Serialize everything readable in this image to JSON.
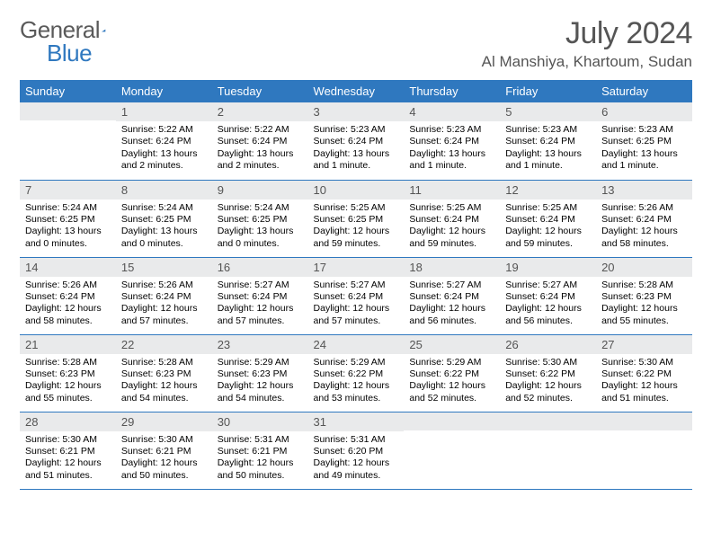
{
  "brand": {
    "word1": "General",
    "word2": "Blue"
  },
  "title": "July 2024",
  "location": "Al Manshiya, Khartoum, Sudan",
  "colors": {
    "brand_blue": "#2f78bf",
    "header_bg": "#2f78bf",
    "daynum_bg": "#e9eaeb",
    "text_gray": "#555555",
    "body_text": "#000000",
    "row_border": "#2f78bf",
    "background": "#ffffff"
  },
  "weekdays": [
    "Sunday",
    "Monday",
    "Tuesday",
    "Wednesday",
    "Thursday",
    "Friday",
    "Saturday"
  ],
  "weeks": [
    [
      {
        "n": "",
        "sr": "",
        "ss": "",
        "dl": ""
      },
      {
        "n": "1",
        "sr": "Sunrise: 5:22 AM",
        "ss": "Sunset: 6:24 PM",
        "dl": "Daylight: 13 hours and 2 minutes."
      },
      {
        "n": "2",
        "sr": "Sunrise: 5:22 AM",
        "ss": "Sunset: 6:24 PM",
        "dl": "Daylight: 13 hours and 2 minutes."
      },
      {
        "n": "3",
        "sr": "Sunrise: 5:23 AM",
        "ss": "Sunset: 6:24 PM",
        "dl": "Daylight: 13 hours and 1 minute."
      },
      {
        "n": "4",
        "sr": "Sunrise: 5:23 AM",
        "ss": "Sunset: 6:24 PM",
        "dl": "Daylight: 13 hours and 1 minute."
      },
      {
        "n": "5",
        "sr": "Sunrise: 5:23 AM",
        "ss": "Sunset: 6:24 PM",
        "dl": "Daylight: 13 hours and 1 minute."
      },
      {
        "n": "6",
        "sr": "Sunrise: 5:23 AM",
        "ss": "Sunset: 6:25 PM",
        "dl": "Daylight: 13 hours and 1 minute."
      }
    ],
    [
      {
        "n": "7",
        "sr": "Sunrise: 5:24 AM",
        "ss": "Sunset: 6:25 PM",
        "dl": "Daylight: 13 hours and 0 minutes."
      },
      {
        "n": "8",
        "sr": "Sunrise: 5:24 AM",
        "ss": "Sunset: 6:25 PM",
        "dl": "Daylight: 13 hours and 0 minutes."
      },
      {
        "n": "9",
        "sr": "Sunrise: 5:24 AM",
        "ss": "Sunset: 6:25 PM",
        "dl": "Daylight: 13 hours and 0 minutes."
      },
      {
        "n": "10",
        "sr": "Sunrise: 5:25 AM",
        "ss": "Sunset: 6:25 PM",
        "dl": "Daylight: 12 hours and 59 minutes."
      },
      {
        "n": "11",
        "sr": "Sunrise: 5:25 AM",
        "ss": "Sunset: 6:24 PM",
        "dl": "Daylight: 12 hours and 59 minutes."
      },
      {
        "n": "12",
        "sr": "Sunrise: 5:25 AM",
        "ss": "Sunset: 6:24 PM",
        "dl": "Daylight: 12 hours and 59 minutes."
      },
      {
        "n": "13",
        "sr": "Sunrise: 5:26 AM",
        "ss": "Sunset: 6:24 PM",
        "dl": "Daylight: 12 hours and 58 minutes."
      }
    ],
    [
      {
        "n": "14",
        "sr": "Sunrise: 5:26 AM",
        "ss": "Sunset: 6:24 PM",
        "dl": "Daylight: 12 hours and 58 minutes."
      },
      {
        "n": "15",
        "sr": "Sunrise: 5:26 AM",
        "ss": "Sunset: 6:24 PM",
        "dl": "Daylight: 12 hours and 57 minutes."
      },
      {
        "n": "16",
        "sr": "Sunrise: 5:27 AM",
        "ss": "Sunset: 6:24 PM",
        "dl": "Daylight: 12 hours and 57 minutes."
      },
      {
        "n": "17",
        "sr": "Sunrise: 5:27 AM",
        "ss": "Sunset: 6:24 PM",
        "dl": "Daylight: 12 hours and 57 minutes."
      },
      {
        "n": "18",
        "sr": "Sunrise: 5:27 AM",
        "ss": "Sunset: 6:24 PM",
        "dl": "Daylight: 12 hours and 56 minutes."
      },
      {
        "n": "19",
        "sr": "Sunrise: 5:27 AM",
        "ss": "Sunset: 6:24 PM",
        "dl": "Daylight: 12 hours and 56 minutes."
      },
      {
        "n": "20",
        "sr": "Sunrise: 5:28 AM",
        "ss": "Sunset: 6:23 PM",
        "dl": "Daylight: 12 hours and 55 minutes."
      }
    ],
    [
      {
        "n": "21",
        "sr": "Sunrise: 5:28 AM",
        "ss": "Sunset: 6:23 PM",
        "dl": "Daylight: 12 hours and 55 minutes."
      },
      {
        "n": "22",
        "sr": "Sunrise: 5:28 AM",
        "ss": "Sunset: 6:23 PM",
        "dl": "Daylight: 12 hours and 54 minutes."
      },
      {
        "n": "23",
        "sr": "Sunrise: 5:29 AM",
        "ss": "Sunset: 6:23 PM",
        "dl": "Daylight: 12 hours and 54 minutes."
      },
      {
        "n": "24",
        "sr": "Sunrise: 5:29 AM",
        "ss": "Sunset: 6:22 PM",
        "dl": "Daylight: 12 hours and 53 minutes."
      },
      {
        "n": "25",
        "sr": "Sunrise: 5:29 AM",
        "ss": "Sunset: 6:22 PM",
        "dl": "Daylight: 12 hours and 52 minutes."
      },
      {
        "n": "26",
        "sr": "Sunrise: 5:30 AM",
        "ss": "Sunset: 6:22 PM",
        "dl": "Daylight: 12 hours and 52 minutes."
      },
      {
        "n": "27",
        "sr": "Sunrise: 5:30 AM",
        "ss": "Sunset: 6:22 PM",
        "dl": "Daylight: 12 hours and 51 minutes."
      }
    ],
    [
      {
        "n": "28",
        "sr": "Sunrise: 5:30 AM",
        "ss": "Sunset: 6:21 PM",
        "dl": "Daylight: 12 hours and 51 minutes."
      },
      {
        "n": "29",
        "sr": "Sunrise: 5:30 AM",
        "ss": "Sunset: 6:21 PM",
        "dl": "Daylight: 12 hours and 50 minutes."
      },
      {
        "n": "30",
        "sr": "Sunrise: 5:31 AM",
        "ss": "Sunset: 6:21 PM",
        "dl": "Daylight: 12 hours and 50 minutes."
      },
      {
        "n": "31",
        "sr": "Sunrise: 5:31 AM",
        "ss": "Sunset: 6:20 PM",
        "dl": "Daylight: 12 hours and 49 minutes."
      },
      {
        "n": "",
        "sr": "",
        "ss": "",
        "dl": ""
      },
      {
        "n": "",
        "sr": "",
        "ss": "",
        "dl": ""
      },
      {
        "n": "",
        "sr": "",
        "ss": "",
        "dl": ""
      }
    ]
  ]
}
